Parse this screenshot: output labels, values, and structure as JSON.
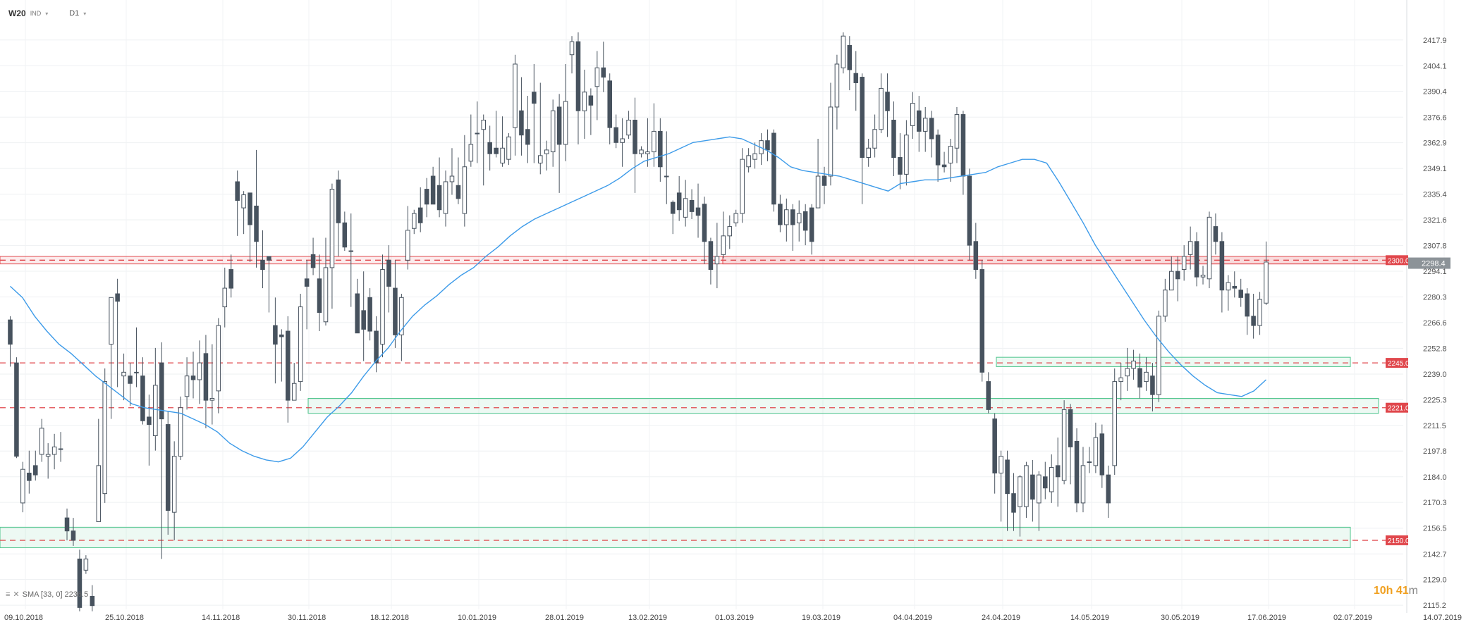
{
  "header": {
    "symbol": "W20",
    "type": "IND",
    "timeframe": "D1"
  },
  "countdown": {
    "hours": "10",
    "h_unit": "h",
    "minutes": "41",
    "m_unit": "m"
  },
  "indicator": {
    "label": "SMA [33, 0] 2236.5"
  },
  "colors": {
    "bull_fill": "#ffffff",
    "bear_fill": "#47525e",
    "candle_stroke": "#47525e",
    "sma": "#3d9be9",
    "level_line": "#e0474c",
    "zone_red": "#e0474c",
    "zone_green": "#4cc48a",
    "price_tag": "#8c9398"
  },
  "chart_data": {
    "type": "candlestick",
    "ylim": [
      2113,
      2428
    ],
    "y_ticks": [
      "2417.9",
      "2404.1",
      "2390.4",
      "2376.6",
      "2362.9",
      "2349.1",
      "2335.4",
      "2321.6",
      "2307.8",
      "2294.1",
      "2280.3",
      "2266.6",
      "2252.8",
      "2239.0",
      "2225.3",
      "2211.5",
      "2197.8",
      "2184.0",
      "2170.3",
      "2156.5",
      "2142.7",
      "2129.0",
      "2115.2"
    ],
    "x_labels": [
      "09.10.2018",
      "25.10.2018",
      "14.11.2018",
      "30.11.2018",
      "18.12.2018",
      "10.01.2019",
      "28.01.2019",
      "13.02.2019",
      "01.03.2019",
      "19.03.2019",
      "04.04.2019",
      "24.04.2019",
      "14.05.2019",
      "30.05.2019",
      "17.06.2019",
      "02.07.2019",
      "14.07.2019"
    ],
    "horizontal_levels": [
      {
        "label": "2300.0",
        "value": 2300.0
      },
      {
        "label": "2245.0",
        "value": 2245.0
      },
      {
        "label": "2221.0",
        "value": 2221.0
      },
      {
        "label": "2150.0",
        "value": 2150.0
      }
    ],
    "current_price": "2298.4",
    "sma_label": "SMA [33, 0] 2236.5",
    "sma": [
      2286,
      2280,
      2270,
      2262,
      2255,
      2250,
      2244,
      2238,
      2233,
      2228,
      2223,
      2221,
      2220,
      2219,
      2218,
      2215,
      2212,
      2208,
      2202,
      2198,
      2195,
      2193,
      2192,
      2194,
      2200,
      2208,
      2216,
      2222,
      2229,
      2238,
      2246,
      2253,
      2262,
      2270,
      2276,
      2281,
      2287,
      2292,
      2296,
      2302,
      2307,
      2313,
      2318,
      2322,
      2325,
      2328,
      2331,
      2334,
      2337,
      2340,
      2344,
      2349,
      2353,
      2355,
      2357,
      2360,
      2363,
      2364,
      2365,
      2366,
      2365,
      2362,
      2359,
      2355,
      2350,
      2348,
      2347,
      2346,
      2345,
      2343,
      2341,
      2339,
      2337,
      2341,
      2342,
      2343,
      2343,
      2344,
      2345,
      2346,
      2347,
      2350,
      2352,
      2354,
      2354,
      2352,
      2342,
      2331,
      2320,
      2308,
      2298,
      2288,
      2278,
      2268,
      2259,
      2251,
      2244,
      2238,
      2233,
      2229,
      2228,
      2227,
      2230,
      2236
    ],
    "candles": [
      [
        2268,
        2255,
        2270,
        2243
      ],
      [
        2245,
        2195,
        2248,
        2194
      ],
      [
        2170,
        2188,
        2192,
        2165
      ],
      [
        2186,
        2182,
        2198,
        2175
      ],
      [
        2190,
        2185,
        2198,
        2182
      ],
      [
        2196,
        2210,
        2215,
        2192
      ],
      [
        2195,
        2196,
        2202,
        2183
      ],
      [
        2196,
        2200,
        2207,
        2188
      ],
      [
        2199,
        2199,
        2208,
        2192
      ],
      [
        2162,
        2155,
        2167,
        2150
      ],
      [
        2155,
        2150,
        2162,
        2147
      ],
      [
        2140,
        2114,
        2145,
        2112
      ],
      [
        2134,
        2140,
        2142,
        2132
      ],
      [
        2120,
        2115,
        2126,
        2112
      ],
      [
        2160,
        2190,
        2215,
        2170
      ],
      [
        2175,
        2235,
        2242,
        2170
      ],
      [
        2255,
        2280,
        2280,
        2215
      ],
      [
        2282,
        2278,
        2290,
        2232
      ],
      [
        2238,
        2240,
        2250,
        2225
      ],
      [
        2238,
        2234,
        2245,
        2222
      ],
      [
        2240,
        2240,
        2264,
        2232
      ],
      [
        2238,
        2214,
        2248,
        2212
      ],
      [
        2216,
        2212,
        2228,
        2190
      ],
      [
        2206,
        2233,
        2253,
        2198
      ],
      [
        2245,
        2215,
        2256,
        2140
      ],
      [
        2212,
        2166,
        2219,
        2153
      ],
      [
        2165,
        2195,
        2203,
        2150
      ],
      [
        2195,
        2221,
        2227,
        2193
      ],
      [
        2227,
        2238,
        2248,
        2220
      ],
      [
        2238,
        2236,
        2251,
        2226
      ],
      [
        2236,
        2245,
        2257,
        2223
      ],
      [
        2250,
        2225,
        2260,
        2210
      ],
      [
        2225,
        2226,
        2255,
        2212
      ],
      [
        2230,
        2265,
        2269,
        2218
      ],
      [
        2275,
        2285,
        2296,
        2264
      ],
      [
        2295,
        2285,
        2303,
        2280
      ],
      [
        2342,
        2332,
        2348,
        2313
      ],
      [
        2328,
        2335,
        2337,
        2314
      ],
      [
        2336,
        2319,
        2336,
        2299
      ],
      [
        2329,
        2310,
        2359,
        2296
      ],
      [
        2300,
        2295,
        2316,
        2285
      ],
      [
        2302,
        2300,
        2302,
        2272
      ],
      [
        2265,
        2255,
        2280,
        2234
      ],
      [
        2260,
        2259,
        2263,
        2235
      ],
      [
        2262,
        2225,
        2270,
        2213
      ],
      [
        2225,
        2234,
        2245,
        2230
      ],
      [
        2235,
        2275,
        2282,
        2230
      ],
      [
        2290,
        2286,
        2300,
        2263
      ],
      [
        2303,
        2296,
        2312,
        2292
      ],
      [
        2290,
        2272,
        2303,
        2262
      ],
      [
        2267,
        2296,
        2312,
        2265
      ],
      [
        2296,
        2338,
        2341,
        2274
      ],
      [
        2343,
        2320,
        2348,
        2302
      ],
      [
        2320,
        2307,
        2326,
        2305
      ],
      [
        2305,
        2305,
        2325,
        2275
      ],
      [
        2282,
        2261,
        2290,
        2261
      ],
      [
        2273,
        2263,
        2294,
        2246
      ],
      [
        2280,
        2262,
        2285,
        2257
      ],
      [
        2262,
        2245,
        2270,
        2240
      ],
      [
        2255,
        2295,
        2303,
        2248
      ],
      [
        2300,
        2286,
        2308,
        2272
      ],
      [
        2285,
        2260,
        2300,
        2253
      ],
      [
        2260,
        2280,
        2282,
        2246
      ],
      [
        2300,
        2316,
        2329,
        2295
      ],
      [
        2317,
        2325,
        2327,
        2314
      ],
      [
        2328,
        2320,
        2339,
        2315
      ],
      [
        2338,
        2330,
        2344,
        2323
      ],
      [
        2345,
        2330,
        2350,
        2337
      ],
      [
        2340,
        2327,
        2355,
        2323
      ],
      [
        2325,
        2342,
        2348,
        2318
      ],
      [
        2342,
        2345,
        2360,
        2335
      ],
      [
        2340,
        2333,
        2355,
        2330
      ],
      [
        2325,
        2350,
        2367,
        2318
      ],
      [
        2353,
        2362,
        2378,
        2350
      ],
      [
        2368,
        2368,
        2385,
        2352
      ],
      [
        2370,
        2375,
        2378,
        2340
      ],
      [
        2363,
        2357,
        2372,
        2348
      ],
      [
        2360,
        2357,
        2380,
        2355
      ],
      [
        2352,
        2360,
        2377,
        2350
      ],
      [
        2354,
        2366,
        2368,
        2351
      ],
      [
        2371,
        2405,
        2410,
        2356
      ],
      [
        2380,
        2367,
        2398,
        2356
      ],
      [
        2370,
        2362,
        2388,
        2352
      ],
      [
        2390,
        2384,
        2405,
        2352
      ],
      [
        2352,
        2356,
        2395,
        2346
      ],
      [
        2357,
        2359,
        2364,
        2348
      ],
      [
        2358,
        2380,
        2386,
        2350
      ],
      [
        2382,
        2362,
        2389,
        2336
      ],
      [
        2362,
        2385,
        2405,
        2353
      ],
      [
        2410,
        2417,
        2420,
        2400
      ],
      [
        2417,
        2380,
        2422,
        2362
      ],
      [
        2380,
        2390,
        2402,
        2365
      ],
      [
        2388,
        2383,
        2392,
        2367
      ],
      [
        2393,
        2403,
        2412,
        2375
      ],
      [
        2403,
        2398,
        2417,
        2390
      ],
      [
        2396,
        2371,
        2400,
        2362
      ],
      [
        2371,
        2363,
        2378,
        2360
      ],
      [
        2363,
        2365,
        2376,
        2350
      ],
      [
        2367,
        2375,
        2380,
        2365
      ],
      [
        2375,
        2357,
        2387,
        2336
      ],
      [
        2357,
        2359,
        2361,
        2355
      ],
      [
        2357,
        2358,
        2376,
        2350
      ],
      [
        2358,
        2369,
        2384,
        2350
      ],
      [
        2369,
        2350,
        2376,
        2342
      ],
      [
        2345,
        2345,
        2369,
        2330
      ],
      [
        2331,
        2325,
        2332,
        2314
      ],
      [
        2336,
        2327,
        2345,
        2321
      ],
      [
        2323,
        2333,
        2343,
        2318
      ],
      [
        2332,
        2326,
        2338,
        2322
      ],
      [
        2328,
        2324,
        2341,
        2312
      ],
      [
        2330,
        2310,
        2334,
        2298
      ],
      [
        2310,
        2295,
        2312,
        2287
      ],
      [
        2298,
        2302,
        2320,
        2285
      ],
      [
        2303,
        2313,
        2326,
        2301
      ],
      [
        2313,
        2318,
        2324,
        2306
      ],
      [
        2320,
        2325,
        2327,
        2318
      ],
      [
        2325,
        2354,
        2360,
        2320
      ],
      [
        2350,
        2356,
        2360,
        2347
      ],
      [
        2354,
        2357,
        2363,
        2349
      ],
      [
        2357,
        2364,
        2368,
        2351
      ],
      [
        2364,
        2359,
        2370,
        2353
      ],
      [
        2368,
        2330,
        2370,
        2326
      ],
      [
        2330,
        2319,
        2335,
        2315
      ],
      [
        2319,
        2327,
        2333,
        2310
      ],
      [
        2327,
        2319,
        2330,
        2305
      ],
      [
        2320,
        2325,
        2332,
        2310
      ],
      [
        2326,
        2316,
        2330,
        2308
      ],
      [
        2328,
        2310,
        2330,
        2303
      ],
      [
        2328,
        2345,
        2365,
        2342
      ],
      [
        2345,
        2340,
        2350,
        2330
      ],
      [
        2345,
        2382,
        2395,
        2340
      ],
      [
        2382,
        2405,
        2410,
        2370
      ],
      [
        2403,
        2420,
        2422,
        2400
      ],
      [
        2415,
        2402,
        2420,
        2391
      ],
      [
        2400,
        2395,
        2412,
        2380
      ],
      [
        2398,
        2355,
        2400,
        2330
      ],
      [
        2355,
        2360,
        2365,
        2350
      ],
      [
        2360,
        2370,
        2378,
        2355
      ],
      [
        2370,
        2392,
        2400,
        2368
      ],
      [
        2390,
        2380,
        2400,
        2366
      ],
      [
        2375,
        2355,
        2385,
        2345
      ],
      [
        2355,
        2346,
        2368,
        2338
      ],
      [
        2346,
        2367,
        2375,
        2340
      ],
      [
        2372,
        2384,
        2390,
        2365
      ],
      [
        2380,
        2369,
        2388,
        2358
      ],
      [
        2369,
        2376,
        2382,
        2358
      ],
      [
        2376,
        2365,
        2380,
        2355
      ],
      [
        2367,
        2351,
        2370,
        2342
      ],
      [
        2351,
        2350,
        2358,
        2347
      ],
      [
        2352,
        2361,
        2365,
        2342
      ],
      [
        2360,
        2378,
        2382,
        2352
      ],
      [
        2378,
        2345,
        2380,
        2335
      ],
      [
        2345,
        2308,
        2349,
        2300
      ],
      [
        2310,
        2295,
        2320,
        2290
      ],
      [
        2295,
        2240,
        2300,
        2235
      ],
      [
        2235,
        2220,
        2240,
        2218
      ],
      [
        2215,
        2186,
        2218,
        2175
      ],
      [
        2186,
        2195,
        2198,
        2160
      ],
      [
        2193,
        2175,
        2198,
        2155
      ],
      [
        2175,
        2165,
        2186,
        2155
      ],
      [
        2168,
        2184,
        2185,
        2152
      ],
      [
        2168,
        2190,
        2192,
        2162
      ],
      [
        2185,
        2172,
        2193,
        2160
      ],
      [
        2170,
        2185,
        2187,
        2155
      ],
      [
        2184,
        2178,
        2192,
        2172
      ],
      [
        2176,
        2189,
        2196,
        2170
      ],
      [
        2190,
        2184,
        2205,
        2168
      ],
      [
        2182,
        2220,
        2225,
        2180
      ],
      [
        2220,
        2200,
        2223,
        2180
      ],
      [
        2203,
        2170,
        2210,
        2165
      ],
      [
        2170,
        2190,
        2200,
        2165
      ],
      [
        2192,
        2192,
        2200,
        2186
      ],
      [
        2190,
        2205,
        2213,
        2186
      ],
      [
        2207,
        2185,
        2212,
        2178
      ],
      [
        2185,
        2170,
        2190,
        2162
      ],
      [
        2190,
        2235,
        2242,
        2185
      ],
      [
        2235,
        2237,
        2245,
        2225
      ],
      [
        2238,
        2242,
        2253,
        2230
      ],
      [
        2242,
        2246,
        2252,
        2236
      ],
      [
        2242,
        2232,
        2250,
        2226
      ],
      [
        2235,
        2240,
        2248,
        2230
      ],
      [
        2238,
        2228,
        2245,
        2219
      ],
      [
        2228,
        2270,
        2273,
        2224
      ],
      [
        2270,
        2284,
        2290,
        2267
      ],
      [
        2284,
        2294,
        2302,
        2285
      ],
      [
        2294,
        2290,
        2302,
        2278
      ],
      [
        2295,
        2302,
        2308,
        2289
      ],
      [
        2303,
        2310,
        2318,
        2295
      ],
      [
        2310,
        2291,
        2315,
        2286
      ],
      [
        2291,
        2292,
        2297,
        2287
      ],
      [
        2290,
        2323,
        2326,
        2285
      ],
      [
        2318,
        2310,
        2325,
        2303
      ],
      [
        2310,
        2284,
        2315,
        2272
      ],
      [
        2284,
        2288,
        2292,
        2273
      ],
      [
        2286,
        2285,
        2294,
        2280
      ],
      [
        2284,
        2280,
        2290,
        2275
      ],
      [
        2282,
        2270,
        2285,
        2260
      ],
      [
        2270,
        2265,
        2282,
        2258
      ],
      [
        2265,
        2279,
        2283,
        2260
      ],
      [
        2277,
        2299,
        2310,
        2276
      ]
    ]
  }
}
